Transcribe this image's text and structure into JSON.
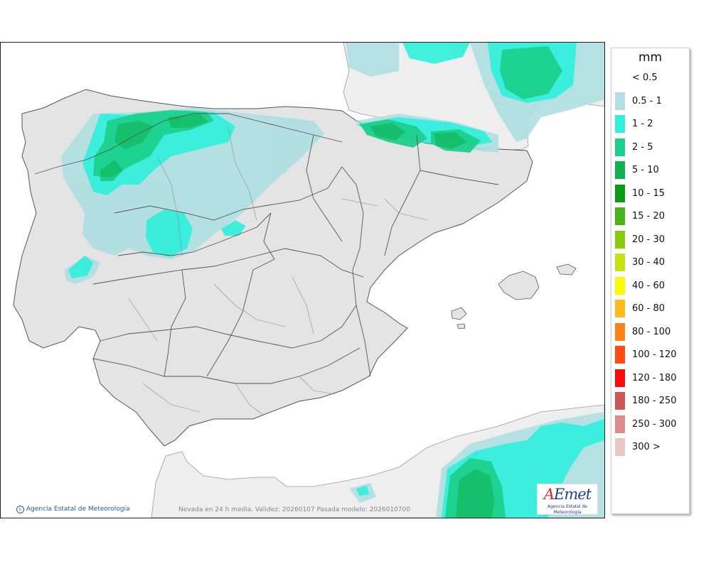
{
  "map": {
    "footer_note": "Nevada en 24 h media. Validez: 20260107 Pasada modelo: 2026010700",
    "credit": "Agencia Estatal de Meteorología",
    "logo": {
      "mark_a": "A",
      "mark_rest": "Emet",
      "subtitle": "Agencia Estatal de Meteorología"
    },
    "colors": {
      "sea": "#ffffff",
      "land": "#e6e6e6",
      "outside_land": "#eeeeee",
      "border": "#333333"
    }
  },
  "legend": {
    "unit": "mm",
    "items": [
      {
        "label": "< 0.5",
        "color": ""
      },
      {
        "label": "0.5 - 1",
        "color": "#b1dfe2"
      },
      {
        "label": "1 - 2",
        "color": "#2ff0dc"
      },
      {
        "label": "2 - 5",
        "color": "#1ccf8a"
      },
      {
        "label": "5 - 10",
        "color": "#10b04e"
      },
      {
        "label": "10 - 15",
        "color": "#0a9a14"
      },
      {
        "label": "15 - 20",
        "color": "#4bb21c"
      },
      {
        "label": "20 - 30",
        "color": "#86cc0c"
      },
      {
        "label": "30 - 40",
        "color": "#c6e414"
      },
      {
        "label": "40 - 60",
        "color": "#fafa00"
      },
      {
        "label": "60 - 80",
        "color": "#ffbb1c"
      },
      {
        "label": "80 - 100",
        "color": "#ff8216"
      },
      {
        "label": "100 - 120",
        "color": "#ff4c12"
      },
      {
        "label": "120 - 180",
        "color": "#ff0a0a"
      },
      {
        "label": "180 - 250",
        "color": "#cf5656"
      },
      {
        "label": "250 - 300",
        "color": "#dc8c8c"
      },
      {
        "label": "300 >",
        "color": "#ecc6c6"
      }
    ]
  }
}
